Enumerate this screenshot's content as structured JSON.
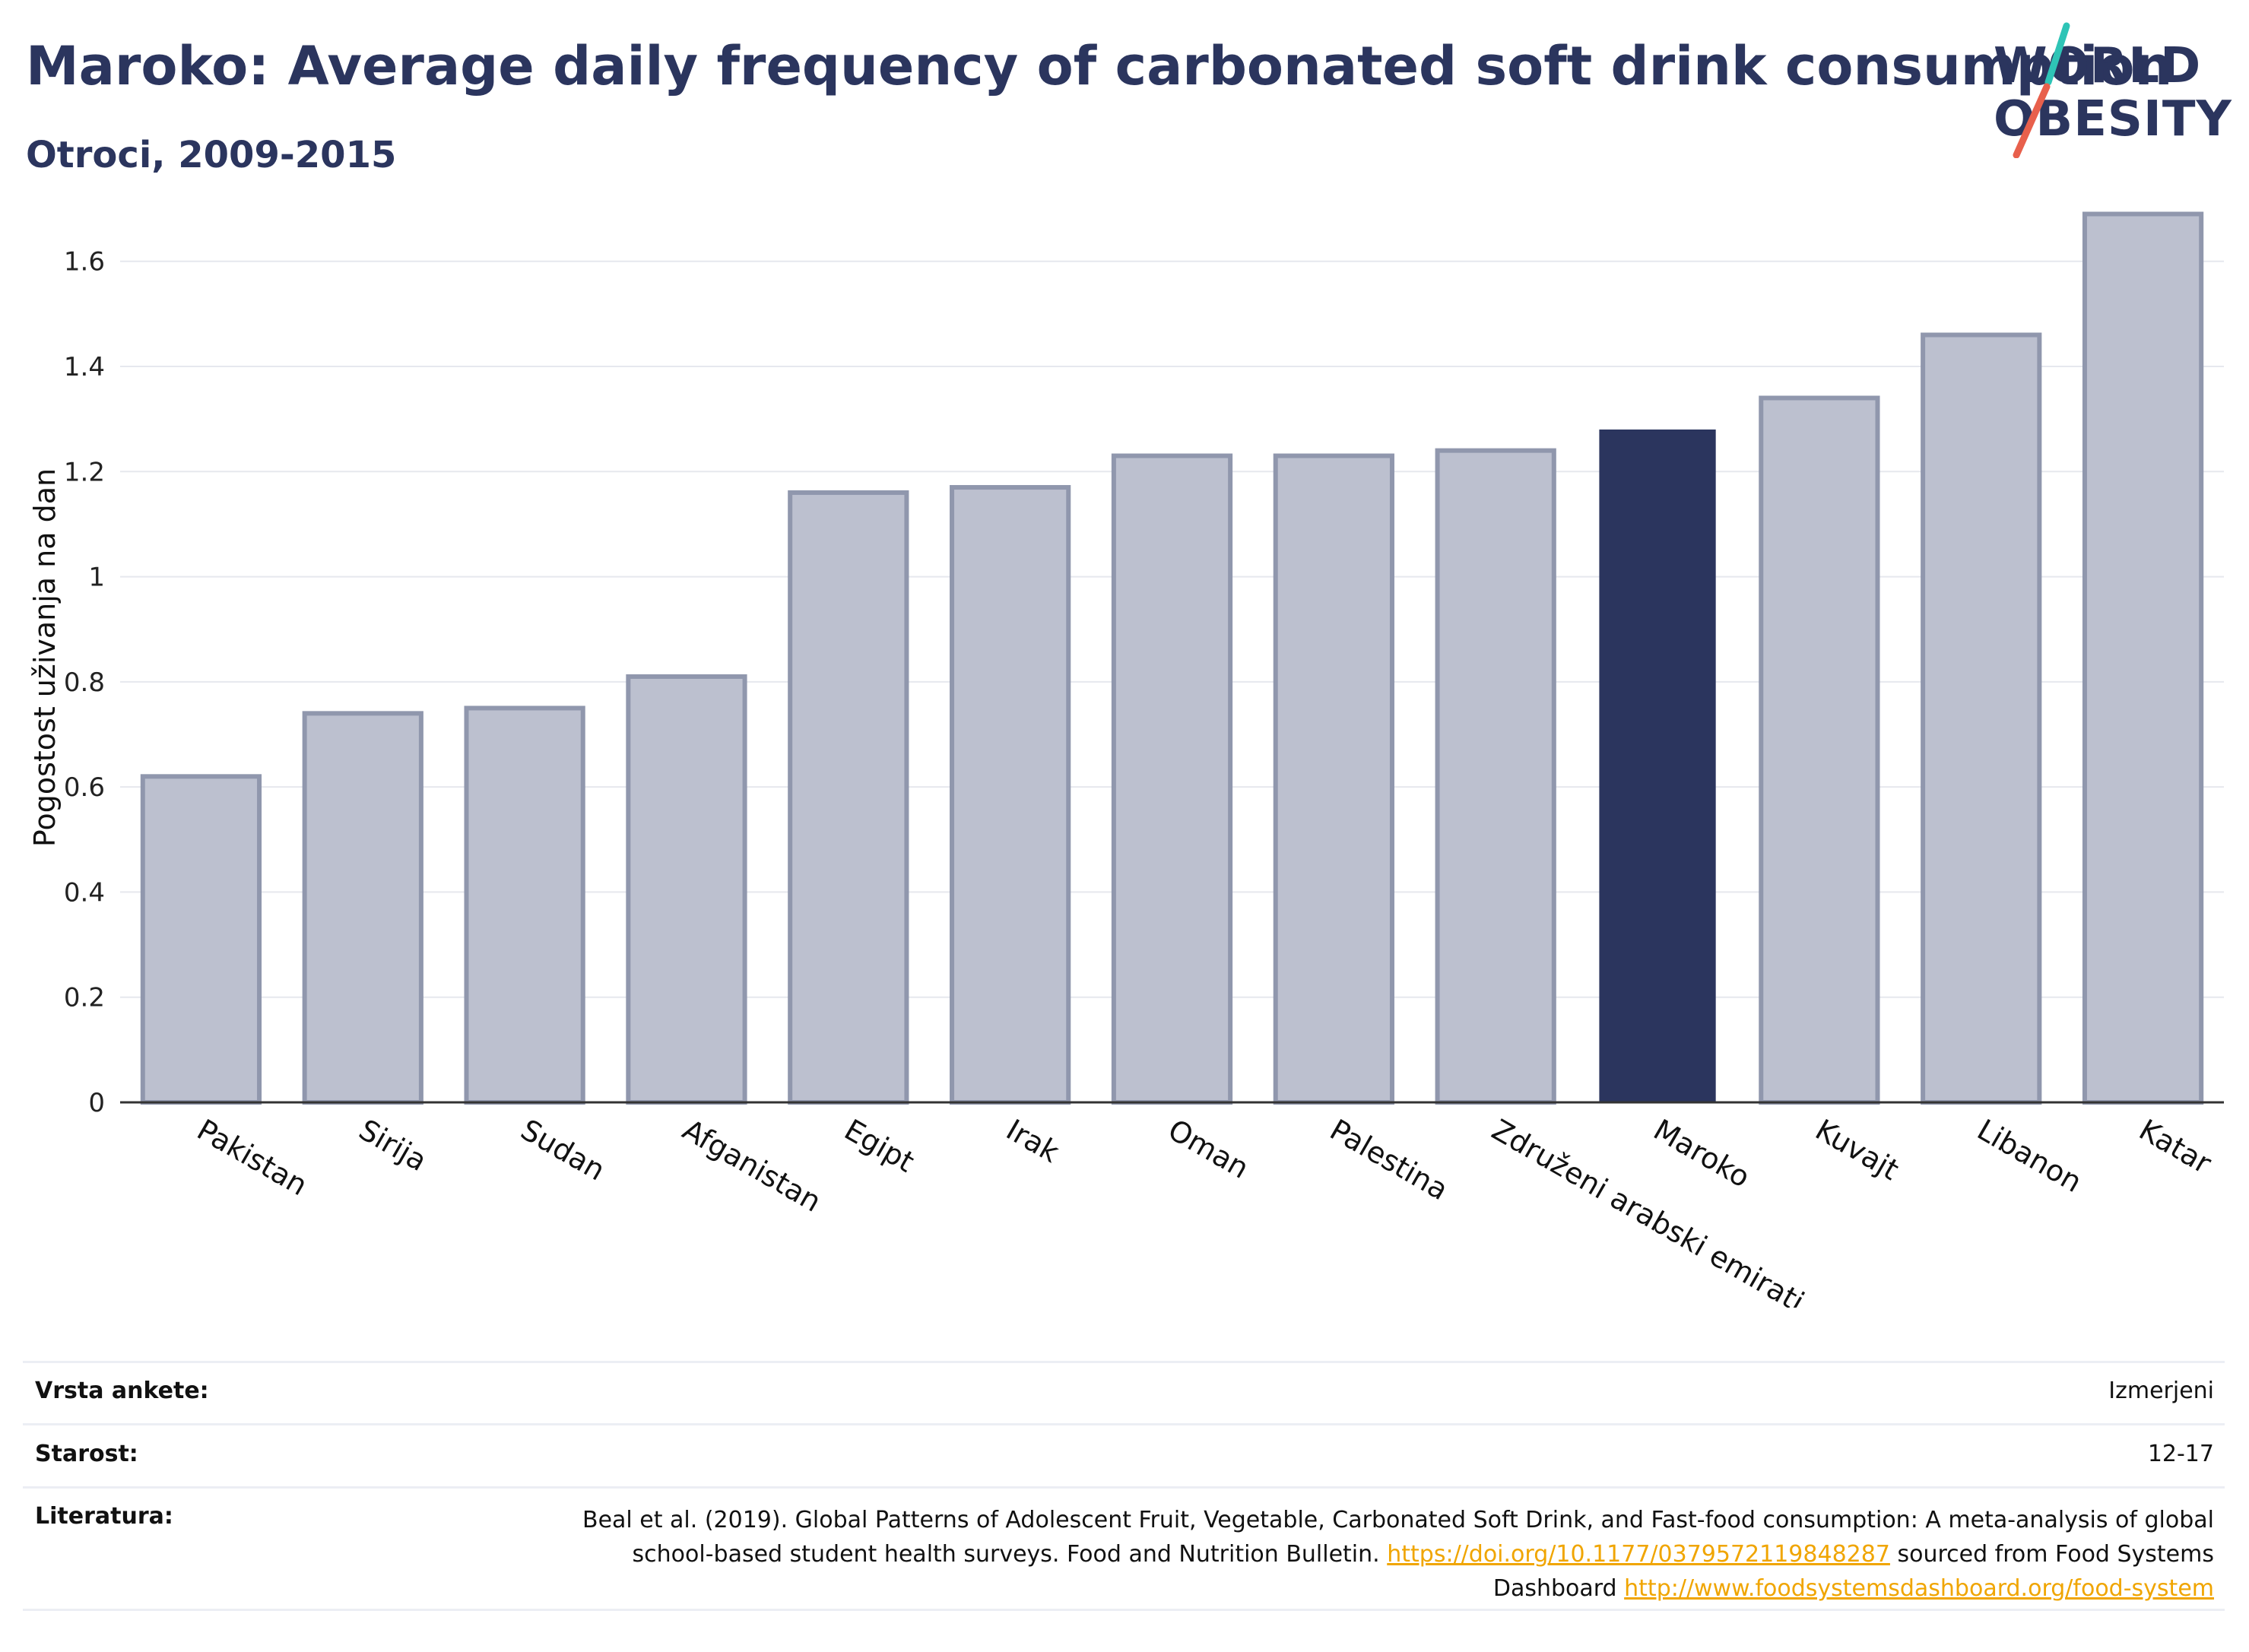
{
  "header": {
    "title": "Maroko: Average daily frequency of carbonated soft drink consumption",
    "subtitle": "Otroci, 2009-2015"
  },
  "logo": {
    "line1": "WORLD",
    "line2": "OBESITY",
    "accent_teal": "#2ec4b6",
    "accent_red": "#e8604c"
  },
  "colors": {
    "highlight": "#2b355e",
    "bar": "#bcc0cf",
    "bar_stroke": "#9097ad",
    "grid": "#e6e8ee",
    "link": "#f0a500"
  },
  "chart_data": {
    "type": "bar",
    "ylabel": "Pogostost uživanja na dan",
    "ylim": [
      0,
      1.75
    ],
    "yticks": [
      {
        "value": 0,
        "label": "0"
      },
      {
        "value": 0.2,
        "label": "0.2"
      },
      {
        "value": 0.4,
        "label": "0.4"
      },
      {
        "value": 0.6,
        "label": "0.6"
      },
      {
        "value": 0.8,
        "label": "0.8"
      },
      {
        "value": 1,
        "label": "1"
      },
      {
        "value": 1.2,
        "label": "1.2"
      },
      {
        "value": 1.4,
        "label": "1.4"
      },
      {
        "value": 1.6,
        "label": "1.6"
      }
    ],
    "categories": [
      "Pakistan",
      "Sirija",
      "Sudan",
      "Afganistan",
      "Egipt",
      "Irak",
      "Oman",
      "Palestina",
      "Združeni arabski emirati",
      "Maroko",
      "Kuvajt",
      "Libanon",
      "Katar"
    ],
    "values": [
      0.62,
      0.74,
      0.75,
      0.81,
      1.16,
      1.17,
      1.23,
      1.23,
      1.24,
      1.28,
      1.34,
      1.46,
      1.69
    ],
    "highlight": "Maroko",
    "grid": true
  },
  "meta": {
    "survey_label": "Vrsta ankete:",
    "survey_value": "Izmerjeni",
    "age_label": "Starost:",
    "age_value": "12-17",
    "ref_label": "Literatura:",
    "ref_text1": "Beal et al. (2019). Global Patterns of Adolescent Fruit, Vegetable, Carbonated Soft Drink, and Fast-food consumption: A meta-analysis of global school-based student health surveys. Food and Nutrition Bulletin.",
    "ref_link1": "https://doi.org/10.1177/0379572119848287",
    "ref_text2": "sourced from Food Systems Dashboard",
    "ref_link2": "http://www.foodsystemsdashboard.org/food-system"
  }
}
